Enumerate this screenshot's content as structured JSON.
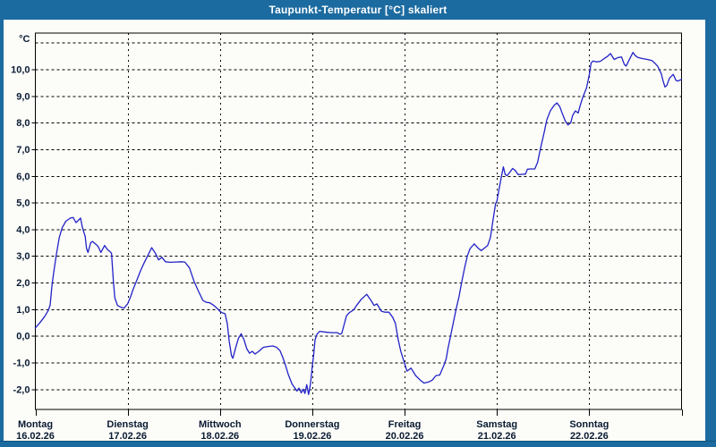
{
  "window": {
    "title": "Taupunkt-Temperatur [°C] skaliert",
    "titlebar_color": "#1c6ba0",
    "frame_color": "#1c6ba0"
  },
  "chart_data": {
    "type": "line",
    "title": "Taupunkt-Temperatur [°C] skaliert",
    "ylabel": "°C",
    "unit_label": "°C",
    "xlabel": "",
    "ylim": [
      -2.76,
      11.36
    ],
    "grid": "dotted-black",
    "legend": "none",
    "line_color": "#2222c8",
    "axis_text_color": "#0a1a33",
    "panel_color": "#fcfdf8",
    "y_ticks": [
      {
        "value": 10,
        "label": "10,0"
      },
      {
        "value": 9,
        "label": "9,0"
      },
      {
        "value": 8,
        "label": "8,0"
      },
      {
        "value": 7,
        "label": "7,0"
      },
      {
        "value": 6,
        "label": "6,0"
      },
      {
        "value": 5,
        "label": "5,0"
      },
      {
        "value": 4,
        "label": "4,0"
      },
      {
        "value": 3,
        "label": "3,0"
      },
      {
        "value": 2,
        "label": "2,0"
      },
      {
        "value": 1,
        "label": "1,0"
      },
      {
        "value": 0,
        "label": "0,0"
      },
      {
        "value": -1,
        "label": "-1,0"
      },
      {
        "value": -2,
        "label": "-2,0"
      }
    ],
    "x_days": [
      {
        "name": "Montag",
        "date": "16.02.26"
      },
      {
        "name": "Dienstag",
        "date": "17.02.26"
      },
      {
        "name": "Mittwoch",
        "date": "18.02.26"
      },
      {
        "name": "Donnerstag",
        "date": "19.02.26"
      },
      {
        "name": "Freitag",
        "date": "20.02.26"
      },
      {
        "name": "Samstag",
        "date": "21.02.26"
      },
      {
        "name": "Sonntag",
        "date": "22.02.26"
      }
    ],
    "series": [
      {
        "name": "Taupunkt-Temperatur",
        "points": [
          [
            0.0,
            0.3
          ],
          [
            0.05,
            0.5
          ],
          [
            0.1,
            0.72
          ],
          [
            0.14,
            0.95
          ],
          [
            0.16,
            1.15
          ],
          [
            0.18,
            1.9
          ],
          [
            0.2,
            2.4
          ],
          [
            0.23,
            3.1
          ],
          [
            0.26,
            3.7
          ],
          [
            0.29,
            4.05
          ],
          [
            0.33,
            4.3
          ],
          [
            0.38,
            4.42
          ],
          [
            0.41,
            4.44
          ],
          [
            0.44,
            4.25
          ],
          [
            0.47,
            4.35
          ],
          [
            0.49,
            4.42
          ],
          [
            0.51,
            4.06
          ],
          [
            0.54,
            3.73
          ],
          [
            0.555,
            3.28
          ],
          [
            0.57,
            3.13
          ],
          [
            0.6,
            3.5
          ],
          [
            0.62,
            3.54
          ],
          [
            0.65,
            3.45
          ],
          [
            0.68,
            3.36
          ],
          [
            0.71,
            3.13
          ],
          [
            0.75,
            3.39
          ],
          [
            0.78,
            3.24
          ],
          [
            0.81,
            3.16
          ],
          [
            0.825,
            3.1
          ],
          [
            0.845,
            2.04
          ],
          [
            0.861,
            1.43
          ],
          [
            0.89,
            1.14
          ],
          [
            0.93,
            1.07
          ],
          [
            0.96,
            1.04
          ],
          [
            1.0,
            1.2
          ],
          [
            1.03,
            1.45
          ],
          [
            1.06,
            1.75
          ],
          [
            1.1,
            2.1
          ],
          [
            1.14,
            2.45
          ],
          [
            1.18,
            2.75
          ],
          [
            1.23,
            3.1
          ],
          [
            1.26,
            3.31
          ],
          [
            1.3,
            3.1
          ],
          [
            1.335,
            2.85
          ],
          [
            1.37,
            2.95
          ],
          [
            1.41,
            2.78
          ],
          [
            1.46,
            2.76
          ],
          [
            1.52,
            2.77
          ],
          [
            1.58,
            2.78
          ],
          [
            1.62,
            2.77
          ],
          [
            1.67,
            2.55
          ],
          [
            1.72,
            2.04
          ],
          [
            1.77,
            1.65
          ],
          [
            1.815,
            1.33
          ],
          [
            1.85,
            1.26
          ],
          [
            1.89,
            1.24
          ],
          [
            1.93,
            1.15
          ],
          [
            1.97,
            1.03
          ],
          [
            2.0,
            0.92
          ],
          [
            2.03,
            0.86
          ],
          [
            2.055,
            0.83
          ],
          [
            2.08,
            0.45
          ],
          [
            2.1,
            -0.2
          ],
          [
            2.125,
            -0.75
          ],
          [
            2.14,
            -0.84
          ],
          [
            2.17,
            -0.45
          ],
          [
            2.2,
            -0.09
          ],
          [
            2.23,
            0.08
          ],
          [
            2.26,
            -0.14
          ],
          [
            2.29,
            -0.48
          ],
          [
            2.32,
            -0.65
          ],
          [
            2.35,
            -0.58
          ],
          [
            2.38,
            -0.68
          ],
          [
            2.42,
            -0.58
          ],
          [
            2.47,
            -0.43
          ],
          [
            2.52,
            -0.4
          ],
          [
            2.57,
            -0.38
          ],
          [
            2.61,
            -0.42
          ],
          [
            2.65,
            -0.55
          ],
          [
            2.68,
            -0.8
          ],
          [
            2.71,
            -1.1
          ],
          [
            2.74,
            -1.45
          ],
          [
            2.78,
            -1.8
          ],
          [
            2.81,
            -1.95
          ],
          [
            2.835,
            -2.07
          ],
          [
            2.855,
            -1.96
          ],
          [
            2.88,
            -2.14
          ],
          [
            2.9,
            -2.0
          ],
          [
            2.92,
            -2.16
          ],
          [
            2.94,
            -1.83
          ],
          [
            2.96,
            -2.2
          ],
          [
            2.98,
            -1.8
          ],
          [
            3.0,
            -1.15
          ],
          [
            3.015,
            -0.7
          ],
          [
            3.03,
            -0.15
          ],
          [
            3.05,
            0.06
          ],
          [
            3.08,
            0.17
          ],
          [
            3.12,
            0.15
          ],
          [
            3.17,
            0.13
          ],
          [
            3.22,
            0.12
          ],
          [
            3.27,
            0.12
          ],
          [
            3.3,
            0.06
          ],
          [
            3.32,
            0.1
          ],
          [
            3.34,
            0.36
          ],
          [
            3.37,
            0.75
          ],
          [
            3.4,
            0.87
          ],
          [
            3.45,
            0.98
          ],
          [
            3.48,
            1.14
          ],
          [
            3.53,
            1.37
          ],
          [
            3.59,
            1.56
          ],
          [
            3.64,
            1.31
          ],
          [
            3.67,
            1.14
          ],
          [
            3.7,
            1.2
          ],
          [
            3.75,
            0.92
          ],
          [
            3.79,
            0.89
          ],
          [
            3.83,
            0.89
          ],
          [
            3.87,
            0.7
          ],
          [
            3.9,
            0.47
          ],
          [
            3.93,
            -0.14
          ],
          [
            3.96,
            -0.59
          ],
          [
            4.0,
            -1.04
          ],
          [
            4.025,
            -1.32
          ],
          [
            4.07,
            -1.21
          ],
          [
            4.12,
            -1.49
          ],
          [
            4.17,
            -1.66
          ],
          [
            4.21,
            -1.77
          ],
          [
            4.26,
            -1.73
          ],
          [
            4.3,
            -1.66
          ],
          [
            4.34,
            -1.49
          ],
          [
            4.38,
            -1.47
          ],
          [
            4.42,
            -1.15
          ],
          [
            4.45,
            -0.87
          ],
          [
            4.47,
            -0.48
          ],
          [
            4.5,
            0.02
          ],
          [
            4.53,
            0.53
          ],
          [
            4.56,
            1.03
          ],
          [
            4.59,
            1.48
          ],
          [
            4.62,
            2.04
          ],
          [
            4.65,
            2.55
          ],
          [
            4.68,
            3.0
          ],
          [
            4.71,
            3.28
          ],
          [
            4.755,
            3.45
          ],
          [
            4.8,
            3.28
          ],
          [
            4.83,
            3.2
          ],
          [
            4.86,
            3.28
          ],
          [
            4.9,
            3.39
          ],
          [
            4.93,
            3.7
          ],
          [
            4.96,
            4.4
          ],
          [
            4.985,
            4.95
          ],
          [
            5.0,
            5.05
          ],
          [
            5.02,
            5.45
          ],
          [
            5.05,
            6.0
          ],
          [
            5.07,
            6.34
          ],
          [
            5.09,
            6.05
          ],
          [
            5.11,
            6.01
          ],
          [
            5.14,
            6.14
          ],
          [
            5.17,
            6.28
          ],
          [
            5.2,
            6.2
          ],
          [
            5.23,
            6.05
          ],
          [
            5.27,
            6.06
          ],
          [
            5.31,
            6.07
          ],
          [
            5.33,
            6.25
          ],
          [
            5.36,
            6.26
          ],
          [
            5.41,
            6.26
          ],
          [
            5.44,
            6.5
          ],
          [
            5.47,
            7.0
          ],
          [
            5.51,
            7.6
          ],
          [
            5.54,
            8.1
          ],
          [
            5.58,
            8.45
          ],
          [
            5.62,
            8.65
          ],
          [
            5.65,
            8.74
          ],
          [
            5.68,
            8.6
          ],
          [
            5.71,
            8.33
          ],
          [
            5.74,
            8.07
          ],
          [
            5.77,
            7.91
          ],
          [
            5.8,
            7.99
          ],
          [
            5.82,
            8.27
          ],
          [
            5.85,
            8.44
          ],
          [
            5.88,
            8.36
          ],
          [
            5.9,
            8.61
          ],
          [
            5.93,
            8.94
          ],
          [
            5.97,
            9.3
          ],
          [
            6.0,
            9.79
          ],
          [
            6.02,
            10.23
          ],
          [
            6.04,
            10.31
          ],
          [
            6.08,
            10.28
          ],
          [
            6.12,
            10.3
          ],
          [
            6.16,
            10.4
          ],
          [
            6.2,
            10.49
          ],
          [
            6.23,
            10.59
          ],
          [
            6.27,
            10.37
          ],
          [
            6.31,
            10.44
          ],
          [
            6.35,
            10.46
          ],
          [
            6.38,
            10.18
          ],
          [
            6.4,
            10.12
          ],
          [
            6.44,
            10.4
          ],
          [
            6.474,
            10.63
          ],
          [
            6.5,
            10.51
          ],
          [
            6.53,
            10.44
          ],
          [
            6.58,
            10.4
          ],
          [
            6.63,
            10.37
          ],
          [
            6.68,
            10.33
          ],
          [
            6.71,
            10.23
          ],
          [
            6.74,
            10.12
          ],
          [
            6.78,
            9.84
          ],
          [
            6.8,
            9.56
          ],
          [
            6.82,
            9.34
          ],
          [
            6.84,
            9.39
          ],
          [
            6.87,
            9.67
          ],
          [
            6.91,
            9.81
          ],
          [
            6.94,
            9.58
          ],
          [
            6.96,
            9.56
          ],
          [
            7.0,
            9.62
          ]
        ]
      }
    ]
  }
}
